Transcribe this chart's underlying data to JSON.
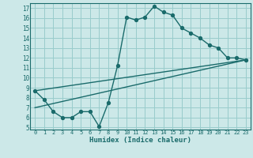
{
  "xlabel": "Humidex (Indice chaleur)",
  "bg_color": "#cce8e8",
  "grid_color": "#99cccc",
  "line_color": "#1a6b6b",
  "xlim": [
    -0.5,
    23.5
  ],
  "ylim": [
    4.8,
    17.5
  ],
  "xticks": [
    0,
    1,
    2,
    3,
    4,
    5,
    6,
    7,
    8,
    9,
    10,
    11,
    12,
    13,
    14,
    15,
    16,
    17,
    18,
    19,
    20,
    21,
    22,
    23
  ],
  "yticks": [
    5,
    6,
    7,
    8,
    9,
    10,
    11,
    12,
    13,
    14,
    15,
    16,
    17
  ],
  "line1_x": [
    0,
    1,
    2,
    3,
    4,
    5,
    6,
    7,
    8,
    9,
    10,
    11,
    12,
    13,
    14,
    15,
    16,
    17,
    18,
    19,
    20,
    21,
    22,
    23
  ],
  "line1_y": [
    8.7,
    7.8,
    6.6,
    6.0,
    6.0,
    6.6,
    6.6,
    5.1,
    7.5,
    11.2,
    16.1,
    15.8,
    16.1,
    17.2,
    16.6,
    16.3,
    15.0,
    14.5,
    14.0,
    13.3,
    13.0,
    12.0,
    12.0,
    11.8
  ],
  "line2_x": [
    0,
    23
  ],
  "line2_y": [
    8.7,
    11.8
  ],
  "line3_x": [
    0,
    23
  ],
  "line3_y": [
    7.0,
    11.8
  ]
}
